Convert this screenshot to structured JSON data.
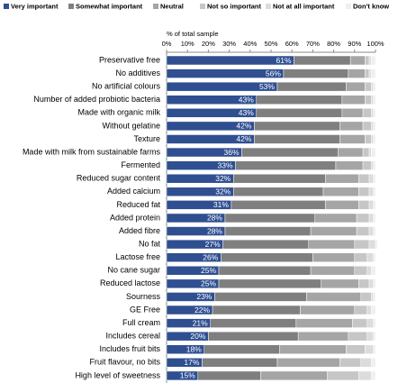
{
  "chart_data": {
    "type": "stacked-bar-horizontal",
    "x_label": "% of total sample",
    "categories": [
      "Preservative free",
      "No additives",
      "No artificial colours",
      "Number of added probiotic bacteria",
      "Made with organic milk",
      "Without gelatine",
      "Texture",
      "Made with milk from sustainable farms",
      "Fermented",
      "Reduced sugar content",
      "Added calcium",
      "Reduced fat",
      "Added protein",
      "Added fibre",
      "No fat",
      "Lactose free",
      "No cane sugar",
      "Reduced lactose",
      "Sourness",
      "GE Free",
      "Full cream",
      "Includes cereal",
      "Includes fruit bits",
      "Fruit flavour, no bits",
      "High level of sweetness"
    ],
    "series": [
      {
        "name": "Very important",
        "color": "#2f4f91",
        "values": [
          61,
          56,
          53,
          43,
          43,
          42,
          42,
          36,
          33,
          32,
          32,
          31,
          28,
          28,
          27,
          26,
          25,
          25,
          23,
          22,
          21,
          20,
          18,
          17,
          15
        ],
        "value_labels": [
          "61%",
          "56%",
          "53%",
          "43%",
          "43%",
          "42%",
          "42%",
          "36%",
          "33%",
          "32%",
          "32%",
          "31%",
          "28%",
          "28%",
          "27%",
          "26%",
          "25%",
          "25%",
          "23%",
          "22%",
          "21%",
          "20%",
          "18%",
          "17%",
          "15%"
        ]
      },
      {
        "name": "Somewhat important",
        "color": "#7f7f7f",
        "values": [
          27,
          31,
          33,
          41,
          41,
          41,
          41,
          46,
          48,
          44,
          43,
          45,
          43,
          41,
          41,
          44,
          44,
          49,
          44,
          42,
          41,
          43,
          36,
          36,
          30
        ]
      },
      {
        "name": "Neutral",
        "color": "#a5a5a5",
        "values": [
          7,
          8,
          9,
          11,
          10,
          11,
          12,
          12,
          13,
          16,
          17,
          16,
          20,
          22,
          22,
          20,
          21,
          18,
          26,
          26,
          27,
          24,
          32,
          30,
          32
        ]
      },
      {
        "name": "Not so important",
        "color": "#c6c6c6",
        "values": [
          2,
          2,
          3,
          3,
          4,
          4,
          3,
          3,
          4,
          5,
          5,
          5,
          6,
          6,
          7,
          6,
          6,
          5,
          5,
          6,
          7,
          9,
          9,
          10,
          15
        ]
      },
      {
        "name": "Not at all important",
        "color": "#dcdcdc",
        "values": [
          1,
          1,
          1,
          1,
          1,
          1,
          1,
          1,
          1,
          2,
          2,
          2,
          2,
          2,
          3,
          3,
          2,
          2,
          1,
          2,
          3,
          3,
          4,
          5,
          6
        ]
      },
      {
        "name": "Don't know",
        "color": "#efefef",
        "values": [
          2,
          2,
          1,
          1,
          1,
          1,
          1,
          2,
          1,
          1,
          1,
          1,
          1,
          1,
          1,
          1,
          2,
          1,
          1,
          2,
          1,
          1,
          1,
          2,
          2
        ]
      }
    ],
    "xlim": [
      0,
      100
    ],
    "xticks": [
      {
        "value": 0,
        "label": "0%"
      },
      {
        "value": 10,
        "label": "10%"
      },
      {
        "value": 20,
        "label": "20%"
      },
      {
        "value": 30,
        "label": "30%"
      },
      {
        "value": 40,
        "label": "40%"
      },
      {
        "value": 50,
        "label": "50%"
      },
      {
        "value": 60,
        "label": "60%"
      },
      {
        "value": 70,
        "label": "70%"
      },
      {
        "value": 80,
        "label": "80%"
      },
      {
        "value": 90,
        "label": "90%"
      },
      {
        "value": 100,
        "label": "100%"
      }
    ]
  }
}
